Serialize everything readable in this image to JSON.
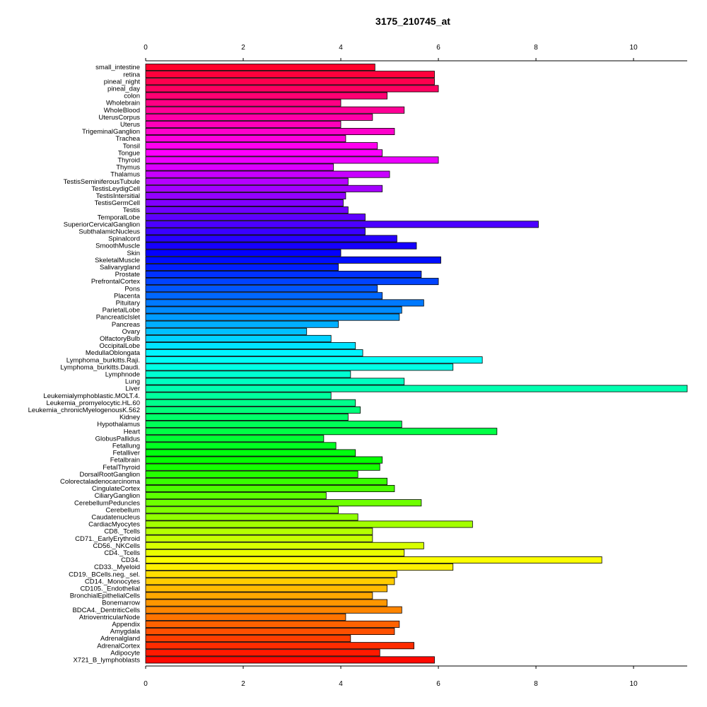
{
  "chart_data": {
    "type": "bar",
    "orientation": "horizontal",
    "title": "3175_210745_at",
    "xlabel": "",
    "ylabel": "",
    "xlim": [
      0,
      11.1
    ],
    "xticks": [
      0,
      2,
      4,
      6,
      8,
      10
    ],
    "grid": false,
    "color_scheme": "rainbow",
    "categories": [
      "small_intestine",
      "retina",
      "pineal_night",
      "pineal_day",
      "colon",
      "Wholebrain",
      "WholeBlood",
      "UterusCorpus",
      "Uterus",
      "TrigeminalGanglion",
      "Trachea",
      "Tonsil",
      "Tongue",
      "Thyroid",
      "Thymus",
      "Thalamus",
      "TestisSeminiferousTubule",
      "TestisLeydigCell",
      "TestisIntersitial",
      "TestisGermCell",
      "Testis",
      "TemporalLobe",
      "SuperiorCervicalGanglion",
      "SubthalamicNucleus",
      "Spinalcord",
      "SmoothMuscle",
      "Skin",
      "SkeletalMuscle",
      "Salivarygland",
      "Prostate",
      "PrefrontalCortex",
      "Pons",
      "Placenta",
      "Pituitary",
      "ParietalLobe",
      "PancreaticIslet",
      "Pancreas",
      "Ovary",
      "OlfactoryBulb",
      "OccipitalLobe",
      "MedullaOblongata",
      "Lymphoma_burkitts.Raji.",
      "Lymphoma_burkitts.Daudi.",
      "Lymphnode",
      "Lung",
      "Liver",
      "Leukemialymphoblastic.MOLT.4.",
      "Leukemia_promyelocytic.HL.60",
      "Leukemia_chronicMyelogenousK.562",
      "Kidney",
      "Hypothalamus",
      "Heart",
      "GlobusPallidus",
      "Fetallung",
      "Fetalliver",
      "Fetalbrain",
      "FetalThyroid",
      "DorsalRootGanglion",
      "Colorectaladenocarcinoma",
      "CingulateCortex",
      "CiliaryGanglion",
      "CerebellumPeduncles",
      "Cerebellum",
      "Caudatenucleus",
      "CardiacMyocytes",
      "CD8._Tcells",
      "CD71._EarlyErythroid",
      "CD56._NKCells",
      "CD4._Tcells",
      "CD34.",
      "CD33._Myeloid",
      "CD19._BCells.neg._sel.",
      "CD14._Monocytes",
      "CD105._Endothelial",
      "BronchialEpithelialCells",
      "Bonemarrow",
      "BDCA4._DentriticCells",
      "AtrioventricularNode",
      "Appendix",
      "Amygdala",
      "Adrenalgland",
      "AdrenalCortex",
      "Adipocyte",
      "X721_B_lymphoblasts"
    ],
    "values": [
      4.7,
      5.92,
      5.92,
      6.0,
      4.95,
      4.0,
      5.3,
      4.65,
      4.0,
      5.1,
      4.1,
      4.75,
      4.85,
      6.0,
      3.85,
      5.0,
      4.15,
      4.85,
      4.1,
      4.05,
      4.15,
      4.5,
      8.05,
      4.5,
      5.15,
      5.55,
      4.0,
      6.05,
      3.95,
      5.65,
      6.0,
      4.75,
      4.85,
      5.7,
      5.25,
      5.2,
      3.95,
      3.3,
      3.8,
      4.3,
      4.45,
      6.9,
      6.3,
      4.2,
      5.3,
      11.1,
      3.8,
      4.3,
      4.4,
      4.15,
      5.25,
      7.2,
      3.65,
      3.9,
      4.3,
      4.85,
      4.8,
      4.35,
      4.95,
      5.1,
      3.7,
      5.65,
      3.95,
      4.35,
      6.7,
      4.65,
      4.65,
      5.7,
      5.3,
      9.35,
      6.3,
      5.15,
      5.1,
      4.95,
      4.65,
      4.95,
      5.25,
      4.1,
      5.2,
      5.1,
      4.2,
      5.5,
      4.8,
      5.92
    ]
  }
}
